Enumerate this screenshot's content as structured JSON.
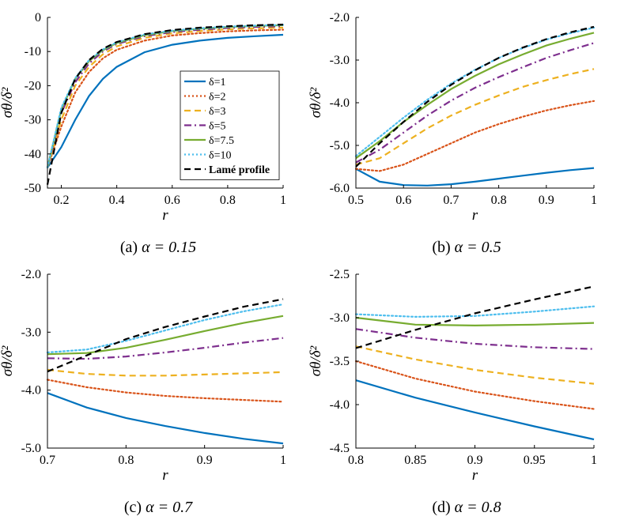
{
  "figure": {
    "series_styles": [
      {
        "name": "δ=1",
        "color": "#0072BD",
        "dash": "solid"
      },
      {
        "name": "δ=2",
        "color": "#D95319",
        "dash": "dotted"
      },
      {
        "name": "δ=3",
        "color": "#EDB120",
        "dash": "dashed"
      },
      {
        "name": "δ=5",
        "color": "#7E2F8E",
        "dash": "dashdot"
      },
      {
        "name": "δ=7.5",
        "color": "#77AC30",
        "dash": "solid"
      },
      {
        "name": "δ=10",
        "color": "#4DBEEE",
        "dash": "dotted"
      },
      {
        "name": "Lamé profile",
        "color": "#000000",
        "dash": "dashed"
      }
    ]
  },
  "chart_data": [
    {
      "type": "line",
      "caption": "(a) α = 0.15",
      "caption_prefix": "(a)",
      "caption_alpha": "α = 0.15",
      "xlabel": "r",
      "ylabel": "σθ/δ²",
      "xlim": [
        0.15,
        1.0
      ],
      "ylim": [
        -50,
        0
      ],
      "xticks": [
        0.2,
        0.4,
        0.6,
        0.8,
        1.0
      ],
      "xtick_labels": [
        "0.2",
        "0.4",
        "0.6",
        "0.8",
        "1"
      ],
      "yticks": [
        -50,
        -40,
        -30,
        -20,
        -10,
        0
      ],
      "ytick_labels": [
        "-50",
        "-40",
        "-30",
        "-20",
        "-10",
        "0"
      ],
      "legend": {
        "position": "right-middle",
        "entries": [
          "δ=1",
          "δ=2",
          "δ=3",
          "δ=5",
          "δ=7.5",
          "δ=10",
          "Lamé profile"
        ]
      },
      "series": [
        {
          "name": "δ=1",
          "x": [
            0.15,
            0.2,
            0.25,
            0.3,
            0.35,
            0.4,
            0.5,
            0.6,
            0.7,
            0.8,
            0.9,
            1.0
          ],
          "values": [
            -44,
            -38,
            -30,
            -23,
            -18,
            -14.5,
            -10.2,
            -8.0,
            -6.8,
            -6.0,
            -5.5,
            -5.1
          ]
        },
        {
          "name": "δ=2",
          "x": [
            0.15,
            0.2,
            0.25,
            0.3,
            0.35,
            0.4,
            0.5,
            0.6,
            0.7,
            0.8,
            0.9,
            1.0
          ],
          "values": [
            -44,
            -32,
            -22,
            -16,
            -12,
            -9.5,
            -6.8,
            -5.3,
            -4.6,
            -4.1,
            -3.8,
            -3.6
          ]
        },
        {
          "name": "δ=3",
          "x": [
            0.15,
            0.2,
            0.25,
            0.3,
            0.35,
            0.4,
            0.5,
            0.6,
            0.7,
            0.8,
            0.9,
            1.0
          ],
          "values": [
            -44,
            -30,
            -20,
            -14.5,
            -10.8,
            -8.5,
            -6.0,
            -4.7,
            -4.0,
            -3.5,
            -3.2,
            -3.0
          ]
        },
        {
          "name": "δ=5",
          "x": [
            0.15,
            0.2,
            0.25,
            0.3,
            0.35,
            0.4,
            0.5,
            0.6,
            0.7,
            0.8,
            0.9,
            1.0
          ],
          "values": [
            -44,
            -28,
            -19,
            -13.5,
            -10.0,
            -7.8,
            -5.5,
            -4.3,
            -3.6,
            -3.1,
            -2.8,
            -2.6
          ]
        },
        {
          "name": "δ=7.5",
          "x": [
            0.15,
            0.2,
            0.25,
            0.3,
            0.35,
            0.4,
            0.5,
            0.6,
            0.7,
            0.8,
            0.9,
            1.0
          ],
          "values": [
            -44,
            -27,
            -18,
            -12.8,
            -9.6,
            -7.5,
            -5.2,
            -4.0,
            -3.3,
            -2.8,
            -2.5,
            -2.3
          ]
        },
        {
          "name": "δ=10",
          "x": [
            0.15,
            0.2,
            0.25,
            0.3,
            0.35,
            0.4,
            0.5,
            0.6,
            0.7,
            0.8,
            0.9,
            1.0
          ],
          "values": [
            -44,
            -26.5,
            -17.8,
            -12.5,
            -9.4,
            -7.3,
            -5.0,
            -3.9,
            -3.2,
            -2.7,
            -2.4,
            -2.2
          ]
        },
        {
          "name": "Lamé profile",
          "x": [
            0.15,
            0.2,
            0.25,
            0.3,
            0.35,
            0.4,
            0.5,
            0.6,
            0.7,
            0.8,
            0.9,
            1.0
          ],
          "values": [
            -49,
            -28,
            -18,
            -12.5,
            -9.2,
            -7.2,
            -4.9,
            -3.7,
            -3.0,
            -2.6,
            -2.3,
            -2.1
          ]
        }
      ]
    },
    {
      "type": "line",
      "caption": "(b) α = 0.5",
      "caption_prefix": "(b)",
      "caption_alpha": "α = 0.5",
      "xlabel": "r",
      "ylabel": "σθ/δ²",
      "xlim": [
        0.5,
        1.0
      ],
      "ylim": [
        -6.0,
        -2.0
      ],
      "xticks": [
        0.5,
        0.6,
        0.7,
        0.8,
        0.9,
        1.0
      ],
      "xtick_labels": [
        "0.5",
        "0.6",
        "0.7",
        "0.8",
        "0.9",
        "1"
      ],
      "yticks": [
        -6.0,
        -5.0,
        -4.0,
        -3.0,
        -2.0
      ],
      "ytick_labels": [
        "-6.0",
        "-5.0",
        "-4.0",
        "-3.0",
        "-2.0"
      ],
      "series": [
        {
          "name": "δ=1",
          "x": [
            0.5,
            0.55,
            0.6,
            0.65,
            0.7,
            0.75,
            0.8,
            0.85,
            0.9,
            0.95,
            1.0
          ],
          "values": [
            -5.55,
            -5.85,
            -5.93,
            -5.94,
            -5.91,
            -5.85,
            -5.78,
            -5.71,
            -5.64,
            -5.58,
            -5.53
          ]
        },
        {
          "name": "δ=2",
          "x": [
            0.5,
            0.55,
            0.6,
            0.65,
            0.7,
            0.75,
            0.8,
            0.85,
            0.9,
            0.95,
            1.0
          ],
          "values": [
            -5.55,
            -5.6,
            -5.45,
            -5.2,
            -4.95,
            -4.7,
            -4.5,
            -4.33,
            -4.18,
            -4.06,
            -3.96
          ]
        },
        {
          "name": "δ=3",
          "x": [
            0.5,
            0.55,
            0.6,
            0.65,
            0.7,
            0.75,
            0.8,
            0.85,
            0.9,
            0.95,
            1.0
          ],
          "values": [
            -5.45,
            -5.3,
            -4.95,
            -4.6,
            -4.3,
            -4.05,
            -3.83,
            -3.63,
            -3.47,
            -3.33,
            -3.21
          ]
        },
        {
          "name": "δ=5",
          "x": [
            0.5,
            0.55,
            0.6,
            0.65,
            0.7,
            0.75,
            0.8,
            0.85,
            0.9,
            0.95,
            1.0
          ],
          "values": [
            -5.4,
            -5.1,
            -4.7,
            -4.3,
            -3.95,
            -3.65,
            -3.4,
            -3.17,
            -2.95,
            -2.77,
            -2.6
          ]
        },
        {
          "name": "δ=7.5",
          "x": [
            0.5,
            0.55,
            0.6,
            0.65,
            0.7,
            0.75,
            0.8,
            0.85,
            0.9,
            0.95,
            1.0
          ],
          "values": [
            -5.3,
            -4.9,
            -4.45,
            -4.05,
            -3.68,
            -3.37,
            -3.1,
            -2.87,
            -2.66,
            -2.5,
            -2.36
          ]
        },
        {
          "name": "δ=10",
          "x": [
            0.5,
            0.55,
            0.6,
            0.65,
            0.7,
            0.75,
            0.8,
            0.85,
            0.9,
            0.95,
            1.0
          ],
          "values": [
            -5.25,
            -4.8,
            -4.35,
            -3.93,
            -3.55,
            -3.23,
            -2.95,
            -2.72,
            -2.52,
            -2.37,
            -2.24
          ]
        },
        {
          "name": "Lamé profile",
          "x": [
            0.5,
            0.55,
            0.6,
            0.65,
            0.7,
            0.75,
            0.8,
            0.85,
            0.9,
            0.95,
            1.0
          ],
          "values": [
            -5.5,
            -4.95,
            -4.45,
            -3.98,
            -3.58,
            -3.24,
            -2.95,
            -2.71,
            -2.51,
            -2.35,
            -2.22
          ]
        }
      ]
    },
    {
      "type": "line",
      "caption": "(c) α = 0.7",
      "caption_prefix": "(c)",
      "caption_alpha": "α = 0.7",
      "xlabel": "r",
      "ylabel": "σθ/δ²",
      "xlim": [
        0.7,
        1.0
      ],
      "ylim": [
        -5.0,
        -2.0
      ],
      "xticks": [
        0.7,
        0.8,
        0.9,
        1.0
      ],
      "xtick_labels": [
        "0.7",
        "0.8",
        "0.9",
        "1"
      ],
      "yticks": [
        -5.0,
        -4.0,
        -3.0,
        -2.0
      ],
      "ytick_labels": [
        "-5.0",
        "-4.0",
        "-3.0",
        "-2.0"
      ],
      "series": [
        {
          "name": "δ=1",
          "x": [
            0.7,
            0.75,
            0.8,
            0.85,
            0.9,
            0.95,
            1.0
          ],
          "values": [
            -4.05,
            -4.3,
            -4.48,
            -4.62,
            -4.74,
            -4.84,
            -4.92
          ]
        },
        {
          "name": "δ=2",
          "x": [
            0.7,
            0.75,
            0.8,
            0.85,
            0.9,
            0.95,
            1.0
          ],
          "values": [
            -3.82,
            -3.95,
            -4.04,
            -4.1,
            -4.14,
            -4.17,
            -4.2
          ]
        },
        {
          "name": "δ=3",
          "x": [
            0.7,
            0.75,
            0.8,
            0.85,
            0.9,
            0.95,
            1.0
          ],
          "values": [
            -3.65,
            -3.72,
            -3.75,
            -3.75,
            -3.73,
            -3.71,
            -3.69
          ]
        },
        {
          "name": "δ=5",
          "x": [
            0.7,
            0.75,
            0.8,
            0.85,
            0.9,
            0.95,
            1.0
          ],
          "values": [
            -3.45,
            -3.46,
            -3.42,
            -3.35,
            -3.27,
            -3.18,
            -3.1
          ]
        },
        {
          "name": "δ=7.5",
          "x": [
            0.7,
            0.75,
            0.8,
            0.85,
            0.9,
            0.95,
            1.0
          ],
          "values": [
            -3.38,
            -3.36,
            -3.27,
            -3.13,
            -2.98,
            -2.84,
            -2.72
          ]
        },
        {
          "name": "δ=10",
          "x": [
            0.7,
            0.75,
            0.8,
            0.85,
            0.9,
            0.95,
            1.0
          ],
          "values": [
            -3.35,
            -3.3,
            -3.15,
            -2.97,
            -2.79,
            -2.64,
            -2.52
          ]
        },
        {
          "name": "Lamé profile",
          "x": [
            0.7,
            0.75,
            0.8,
            0.85,
            0.9,
            0.95,
            1.0
          ],
          "values": [
            -3.68,
            -3.4,
            -3.12,
            -2.91,
            -2.73,
            -2.56,
            -2.43
          ]
        }
      ]
    },
    {
      "type": "line",
      "caption": "(d) α = 0.8",
      "caption_prefix": "(d)",
      "caption_alpha": "α = 0.8",
      "xlabel": "r",
      "ylabel": "σθ/δ²",
      "xlim": [
        0.8,
        1.0
      ],
      "ylim": [
        -4.5,
        -2.5
      ],
      "xticks": [
        0.8,
        0.85,
        0.9,
        0.95,
        1.0
      ],
      "xtick_labels": [
        "0.8",
        "0.85",
        "0.9",
        "0.95",
        "1"
      ],
      "yticks": [
        -4.5,
        -4.0,
        -3.5,
        -3.0,
        -2.5
      ],
      "ytick_labels": [
        "-4.5",
        "-4.0",
        "-3.5",
        "-3.0",
        "-2.5"
      ],
      "series": [
        {
          "name": "δ=1",
          "x": [
            0.8,
            0.85,
            0.9,
            0.95,
            1.0
          ],
          "values": [
            -3.72,
            -3.92,
            -4.09,
            -4.25,
            -4.4
          ]
        },
        {
          "name": "δ=2",
          "x": [
            0.8,
            0.85,
            0.9,
            0.95,
            1.0
          ],
          "values": [
            -3.5,
            -3.7,
            -3.85,
            -3.96,
            -4.05
          ]
        },
        {
          "name": "δ=3",
          "x": [
            0.8,
            0.85,
            0.9,
            0.95,
            1.0
          ],
          "values": [
            -3.33,
            -3.48,
            -3.6,
            -3.69,
            -3.76
          ]
        },
        {
          "name": "δ=5",
          "x": [
            0.8,
            0.85,
            0.9,
            0.95,
            1.0
          ],
          "values": [
            -3.13,
            -3.23,
            -3.3,
            -3.34,
            -3.36
          ]
        },
        {
          "name": "δ=7.5",
          "x": [
            0.8,
            0.85,
            0.9,
            0.95,
            1.0
          ],
          "values": [
            -3.0,
            -3.08,
            -3.09,
            -3.08,
            -3.06
          ]
        },
        {
          "name": "δ=10",
          "x": [
            0.8,
            0.85,
            0.9,
            0.95,
            1.0
          ],
          "values": [
            -2.96,
            -2.99,
            -2.98,
            -2.93,
            -2.87
          ]
        },
        {
          "name": "Lamé profile",
          "x": [
            0.8,
            0.85,
            0.9,
            0.95,
            1.0
          ],
          "values": [
            -3.35,
            -3.14,
            -2.95,
            -2.79,
            -2.64
          ]
        }
      ]
    }
  ]
}
